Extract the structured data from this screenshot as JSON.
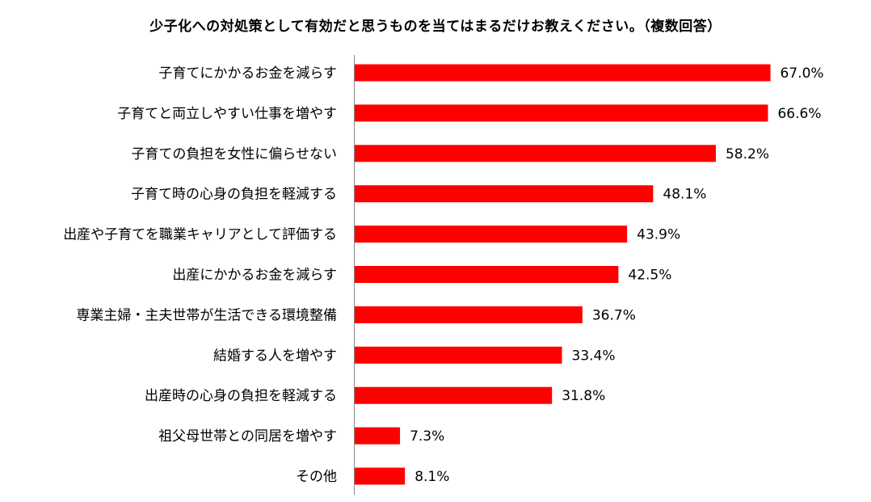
{
  "chart_data": {
    "type": "bar",
    "orientation": "horizontal",
    "title": "少子化への対処策として有効だと思うものを当てはまるだけお教えください。（複数回答）",
    "categories": [
      "子育てにかかるお金を減らす",
      "子育てと両立しやすい仕事を増やす",
      "子育ての負担を女性に偏らせない",
      "子育て時の心身の負担を軽減する",
      "出産や子育てを職業キャリアとして評価する",
      "出産にかかるお金を減らす",
      "専業主婦・主夫世帯が生活できる環境整備",
      "結婚する人を増やす",
      "出産時の心身の負担を軽減する",
      "祖父母世帯との同居を増やす",
      "その他"
    ],
    "values": [
      67.0,
      66.6,
      58.2,
      48.1,
      43.9,
      42.5,
      36.7,
      33.4,
      31.8,
      7.3,
      8.1
    ],
    "value_labels": [
      "67.0%",
      "66.6%",
      "58.2%",
      "48.1%",
      "43.9%",
      "42.5%",
      "36.7%",
      "33.4%",
      "31.8%",
      "7.3%",
      "8.1%"
    ],
    "unit": "%",
    "xlim": [
      0,
      70
    ],
    "grid": false,
    "legend": "none",
    "bar_color": "#ff0000",
    "axis_color": "#888888"
  }
}
